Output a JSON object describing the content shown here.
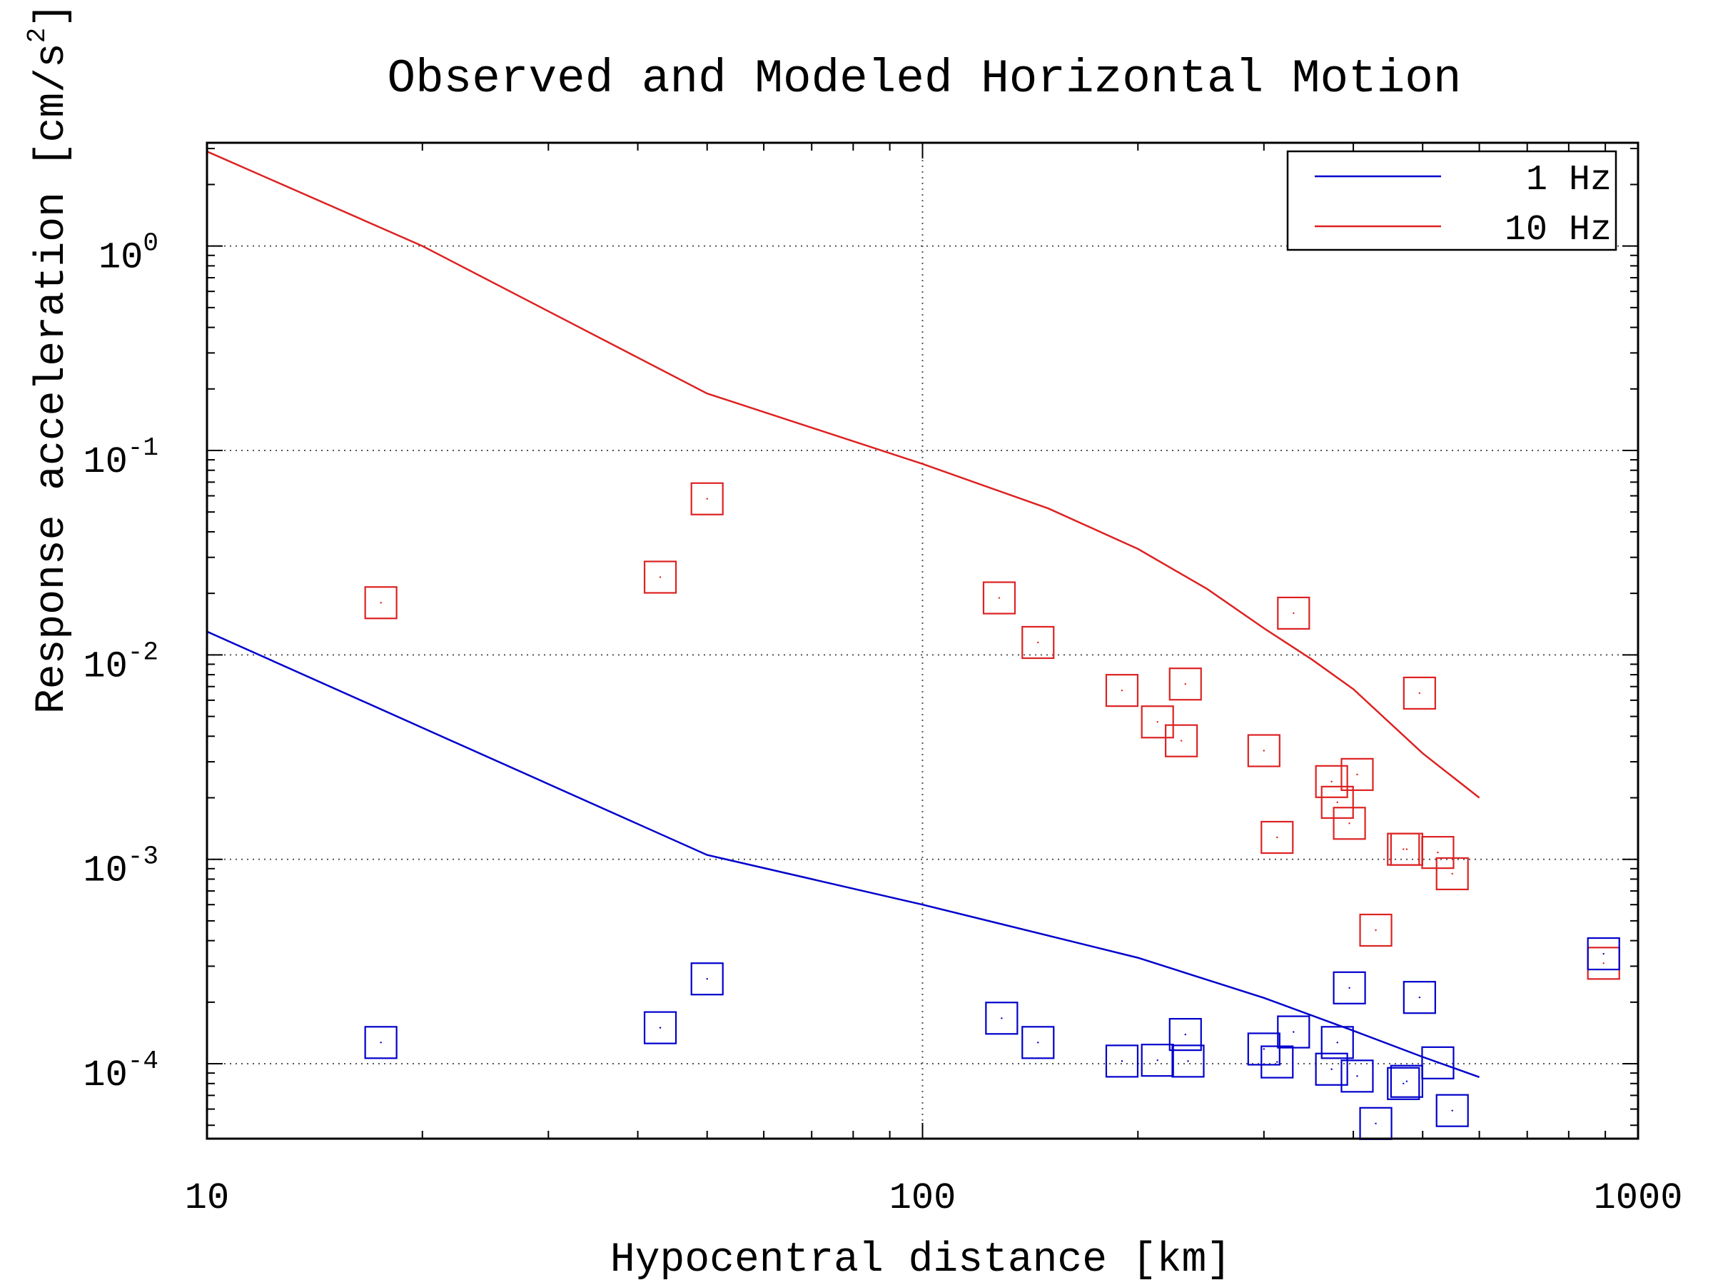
{
  "chart_data": {
    "type": "scatter",
    "title": "Observed and Modeled Horizontal Motion",
    "xlabel": "Hypocentral distance [km]",
    "ylabel": "Response acceleration [cm/s",
    "ylabel_sup": "2",
    "ylabel_suffix": "]",
    "x_scale": "log",
    "y_scale": "log",
    "xlim": [
      10,
      1000
    ],
    "ylim": [
      4.3e-05,
      3.2
    ],
    "grid": true,
    "legend_position": "top-right",
    "x_ticks": [
      {
        "value": 10,
        "label": "10"
      },
      {
        "value": 100,
        "label": "100"
      },
      {
        "value": 1000,
        "label": "1000"
      }
    ],
    "y_ticks": [
      {
        "value": 1,
        "base": "10",
        "exp": "0"
      },
      {
        "value": 0.1,
        "base": "10",
        "exp": "-1"
      },
      {
        "value": 0.01,
        "base": "10",
        "exp": "-2"
      },
      {
        "value": 0.001,
        "base": "10",
        "exp": "-3"
      },
      {
        "value": 0.0001,
        "base": "10",
        "exp": "-4"
      }
    ],
    "series": [
      {
        "name": "1 Hz",
        "color": "#0000cc",
        "style": "line",
        "points": [
          [
            10,
            0.013
          ],
          [
            50,
            0.00105
          ],
          [
            100,
            0.0006
          ],
          [
            200,
            0.00033
          ],
          [
            300,
            0.00021
          ],
          [
            400,
            0.000145
          ],
          [
            500,
            0.000108
          ],
          [
            600,
            8.6e-05
          ]
        ]
      },
      {
        "name": "10 Hz",
        "color": "#dd2222",
        "style": "line",
        "points": [
          [
            10,
            2.9
          ],
          [
            20,
            1.0
          ],
          [
            50,
            0.19
          ],
          [
            100,
            0.086
          ],
          [
            150,
            0.052
          ],
          [
            200,
            0.033
          ],
          [
            250,
            0.021
          ],
          [
            300,
            0.0135
          ],
          [
            350,
            0.0095
          ],
          [
            400,
            0.0068
          ],
          [
            500,
            0.0033
          ],
          [
            600,
            0.002
          ]
        ]
      },
      {
        "name": "",
        "color": "#dd2222",
        "style": "markers",
        "points": [
          [
            17.5,
            0.018
          ],
          [
            43,
            0.024
          ],
          [
            50,
            0.058
          ],
          [
            128,
            0.019
          ],
          [
            145,
            0.0115
          ],
          [
            190,
            0.0067
          ],
          [
            213,
            0.0047
          ],
          [
            233,
            0.0072
          ],
          [
            230,
            0.0038
          ],
          [
            300,
            0.0034
          ],
          [
            313,
            0.00128
          ],
          [
            330,
            0.016
          ],
          [
            373,
            0.0024
          ],
          [
            380,
            0.0019
          ],
          [
            395,
            0.0015
          ],
          [
            405,
            0.0026
          ],
          [
            430,
            0.00045
          ],
          [
            470,
            0.00112
          ],
          [
            475,
            0.00112
          ],
          [
            495,
            0.0065
          ],
          [
            525,
            0.00108
          ],
          [
            550,
            0.00085
          ],
          [
            895,
            0.00031
          ]
        ]
      },
      {
        "name": "",
        "color": "#0000cc",
        "style": "markers",
        "points": [
          [
            17.5,
            0.000127
          ],
          [
            43,
            0.00015
          ],
          [
            50,
            0.00026
          ],
          [
            129,
            0.000167
          ],
          [
            145,
            0.000127
          ],
          [
            190,
            0.000103
          ],
          [
            213,
            0.000104
          ],
          [
            233,
            0.000139
          ],
          [
            235,
            0.000103
          ],
          [
            300,
            0.000118
          ],
          [
            313,
            0.000102
          ],
          [
            330,
            0.000143
          ],
          [
            373,
            9.4e-05
          ],
          [
            380,
            0.000127
          ],
          [
            395,
            0.000235
          ],
          [
            405,
            8.7e-05
          ],
          [
            430,
            5.1e-05
          ],
          [
            470,
            8e-05
          ],
          [
            475,
            8.2e-05
          ],
          [
            495,
            0.000211
          ],
          [
            525,
            0.000101
          ],
          [
            550,
            5.9e-05
          ],
          [
            895,
            0.000345
          ]
        ]
      }
    ],
    "legend": [
      {
        "label": "1 Hz",
        "color": "#0000cc"
      },
      {
        "label": "10 Hz",
        "color": "#dd2222"
      }
    ]
  }
}
